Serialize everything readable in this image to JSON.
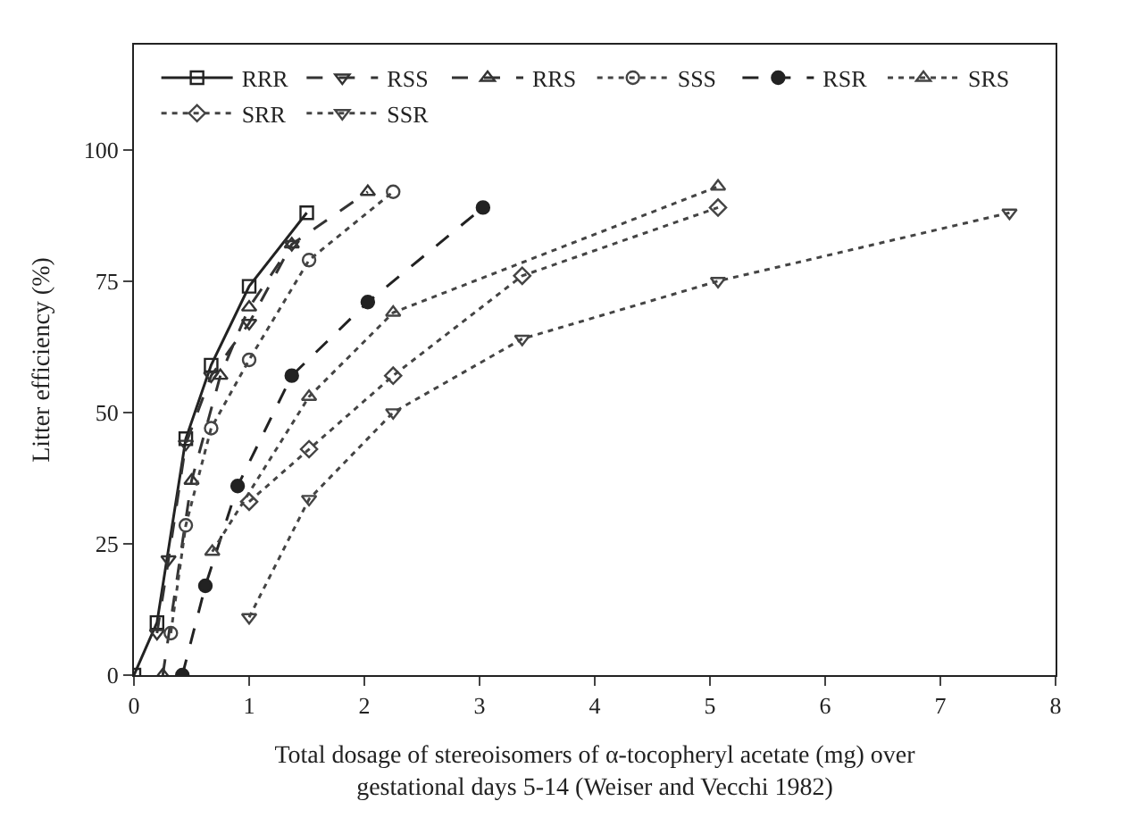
{
  "chart_data": {
    "type": "line",
    "xlabel": "Total dosage of stereoisomers of α-tocopheryl acetate (mg) over\ngestational days 5-14 (Weiser and Vecchi 1982)",
    "ylabel": "Litter efficiency (%)",
    "xlim": [
      0,
      8
    ],
    "xticks": [
      0,
      1,
      2,
      3,
      4,
      5,
      6,
      7,
      8
    ],
    "ylim": [
      0,
      120
    ],
    "yticks": [
      0,
      25,
      50,
      75,
      100
    ],
    "legend": "top",
    "series": [
      {
        "name": "RRR",
        "color": "#222222",
        "marker": "square",
        "line_style": "solid",
        "x": [
          0,
          0.2,
          0.45,
          0.67,
          1.0,
          1.5
        ],
        "values": [
          0,
          10,
          45,
          59,
          74,
          88
        ]
      },
      {
        "name": "RSS",
        "color": "#333333",
        "marker": "triangle-down",
        "line_style": "dashed",
        "x": [
          0.2,
          0.3,
          0.45,
          0.67,
          1.0,
          1.37
        ],
        "values": [
          8,
          22,
          44,
          57,
          67,
          82
        ]
      },
      {
        "name": "RRS",
        "color": "#333333",
        "marker": "triangle",
        "line_style": "dashed",
        "x": [
          0.25,
          0.5,
          0.75,
          1.0,
          1.37,
          2.03
        ],
        "values": [
          0,
          37,
          57,
          70,
          82,
          92
        ]
      },
      {
        "name": "SSS",
        "color": "#444444",
        "marker": "circle-open",
        "line_style": "dotted",
        "x": [
          0.32,
          0.45,
          0.67,
          1.0,
          1.52,
          2.25
        ],
        "values": [
          8,
          28.5,
          47,
          60,
          79,
          92
        ]
      },
      {
        "name": "RSR",
        "color": "#222222",
        "marker": "circle",
        "line_style": "dashed",
        "x": [
          0.42,
          0.62,
          0.9,
          1.37,
          2.03,
          3.03
        ],
        "values": [
          0,
          17,
          36,
          57,
          71,
          89
        ]
      },
      {
        "name": "SRS",
        "color": "#444444",
        "marker": "triangle",
        "line_style": "dotted",
        "x": [
          0.68,
          1.52,
          2.25,
          5.07
        ],
        "values": [
          23.5,
          53,
          69,
          93
        ]
      },
      {
        "name": "SRR",
        "color": "#444444",
        "marker": "diamond",
        "line_style": "dotted",
        "x": [
          1.0,
          1.52,
          2.25,
          3.37,
          5.07
        ],
        "values": [
          33,
          43,
          57,
          76,
          89
        ]
      },
      {
        "name": "SSR",
        "color": "#444444",
        "marker": "triangle-down",
        "line_style": "dotted",
        "x": [
          1.0,
          1.52,
          2.25,
          3.37,
          5.07,
          7.6
        ],
        "values": [
          11,
          33.5,
          50,
          64,
          75,
          88
        ]
      }
    ]
  }
}
